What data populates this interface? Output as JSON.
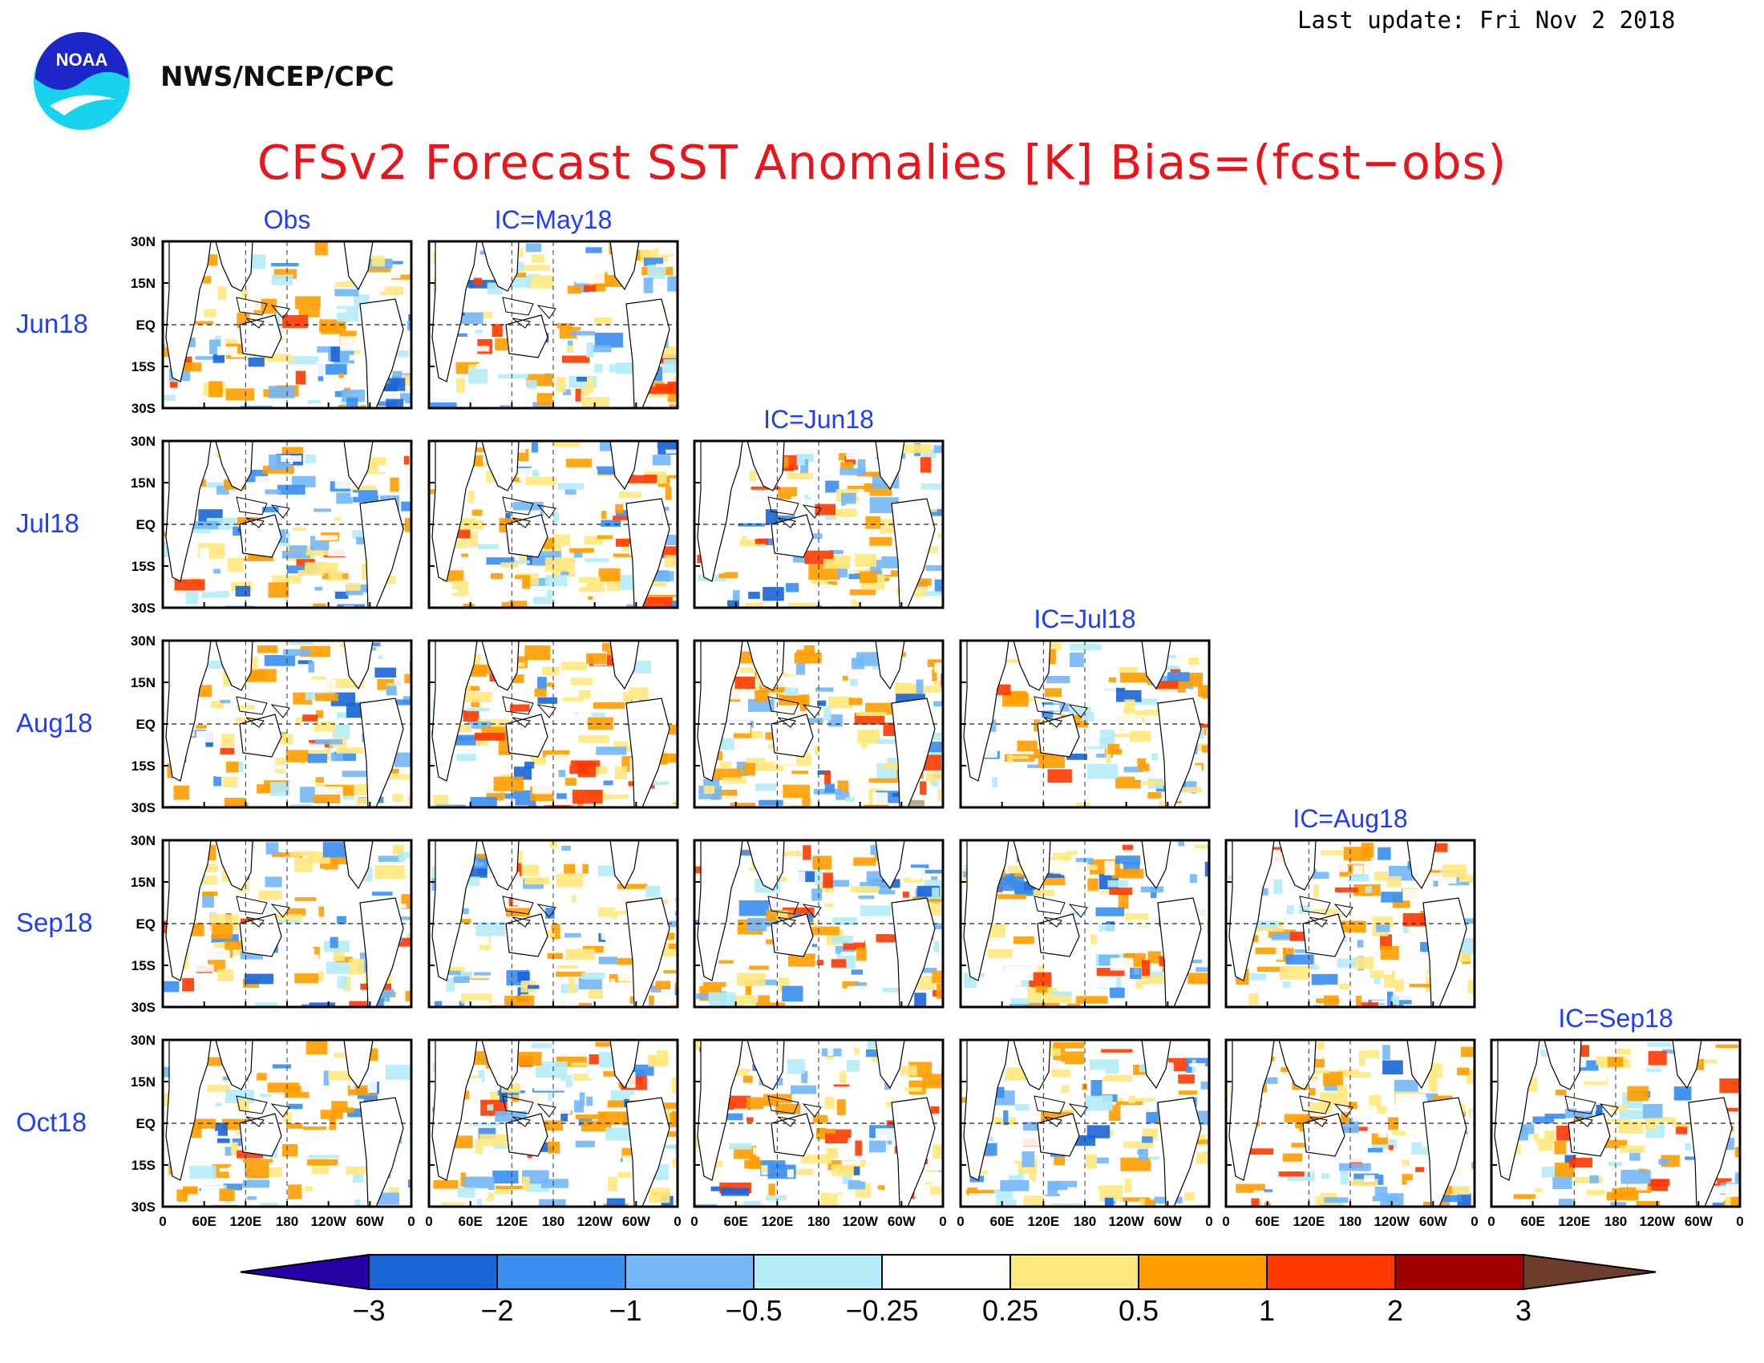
{
  "header": {
    "last_update": "Last update: Fri Nov 2 2018",
    "org": "NWS/NCEP/CPC",
    "logo_text": "NOAA",
    "title": "CFSv2 Forecast SST Anomalies [K] Bias=(fcst−obs)"
  },
  "grid": {
    "rows": [
      "Jun18",
      "Jul18",
      "Aug18",
      "Sep18",
      "Oct18"
    ],
    "columns": [
      "Obs",
      "IC=May18",
      "IC=Jun18",
      "IC=Jul18",
      "IC=Aug18",
      "IC=Sep18"
    ],
    "panels_per_row": [
      2,
      3,
      4,
      5,
      6
    ],
    "lat_labels": [
      "30N",
      "15N",
      "EQ",
      "15S",
      "30S"
    ],
    "lon_labels": [
      "0",
      "60E",
      "120E",
      "180",
      "120W",
      "60W",
      "0"
    ]
  },
  "colorbar": {
    "ticks": [
      "−3",
      "−2",
      "−1",
      "−0.5",
      "−0.25",
      "0.25",
      "0.5",
      "1",
      "2",
      "3"
    ],
    "colors": [
      "#2600a6",
      "#1a65d6",
      "#3a8ef0",
      "#73b7f7",
      "#b4ecf7",
      "#ffffff",
      "#ffe880",
      "#ff9d00",
      "#ff3800",
      "#a10000",
      "#6e3d2c"
    ]
  },
  "colors": {
    "title": "#e8161c",
    "labels": "#1d3eff"
  }
}
